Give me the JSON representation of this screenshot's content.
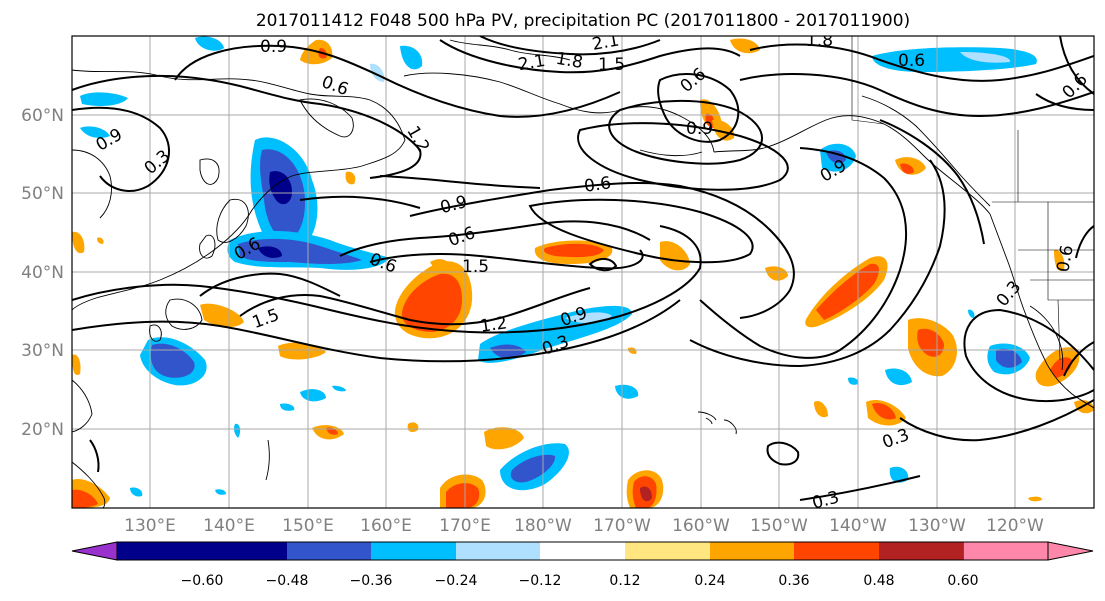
{
  "title": "2017011412 F048 500 hPa PV, precipitation PC (2017011800 - 2017011900)",
  "map": {
    "lat_labels": [
      "60°N",
      "50°N",
      "40°N",
      "30°N",
      "20°N"
    ],
    "lon_labels": [
      "130°E",
      "140°E",
      "150°E",
      "160°E",
      "170°E",
      "180°W",
      "170°W",
      "160°W",
      "150°W",
      "140°W",
      "130°W",
      "120°W"
    ],
    "contour_labels": [
      "0.9",
      "0.6",
      "2.1",
      "1.8",
      "1.5",
      "2.1",
      "1.8",
      "1.2",
      "0.6",
      "0.6",
      "0.9",
      "0.3",
      "0.9",
      "0.6",
      "0.9",
      "0.6",
      "0.6",
      "1.5",
      "1.5",
      "1.2",
      "0.9",
      "0.3",
      "0.3",
      "0.3",
      "0.6",
      "0.3",
      "0.6",
      "0.6",
      "0.9"
    ]
  },
  "colorbar": {
    "colors": [
      "#9932cc",
      "#00008b",
      "#3355cc",
      "#00bfff",
      "#b0e0ff",
      "#ffffff",
      "#ffe680",
      "#ffa500",
      "#ff4500",
      "#b22222",
      "#ff88aa"
    ],
    "tick_labels": [
      "−0.60",
      "−0.48",
      "−0.36",
      "−0.24",
      "−0.12",
      "0.12",
      "0.24",
      "0.36",
      "0.48",
      "0.60"
    ]
  }
}
